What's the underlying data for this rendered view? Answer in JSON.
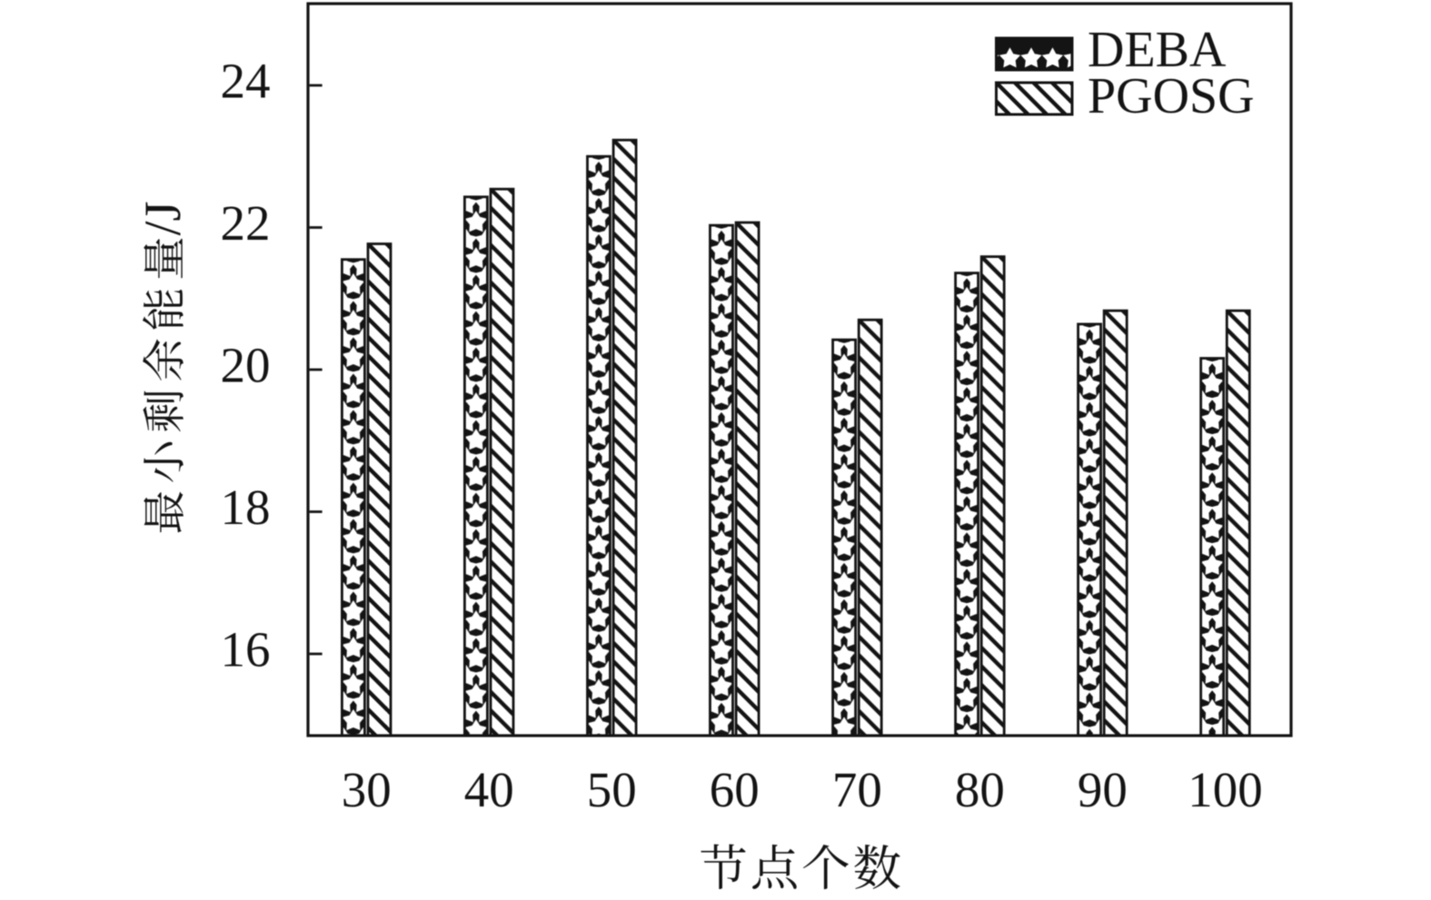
{
  "figure": {
    "background": "#ffffff",
    "ink_color": "#141414"
  },
  "chart_data": {
    "type": "bar",
    "title": "",
    "xlabel": "节点个数",
    "ylabel": "最小剩余能量/J",
    "categories": [
      "30",
      "40",
      "50",
      "60",
      "70",
      "80",
      "90",
      "100"
    ],
    "series": [
      {
        "name": "DEBA",
        "pattern": "white-stars-on-black",
        "values": [
          21.55,
          22.43,
          23.0,
          22.03,
          20.42,
          21.36,
          20.64,
          20.16
        ]
      },
      {
        "name": "PGOSG",
        "pattern": "black-diagonal-hatch",
        "values": [
          21.77,
          22.54,
          23.23,
          22.07,
          20.7,
          21.59,
          20.83,
          20.83
        ]
      }
    ],
    "ylim": [
      14.85,
      25.15
    ],
    "yticks": [
      16,
      18,
      20,
      22,
      24
    ],
    "grid": false,
    "legend_position": "top-right",
    "legend_labels": [
      "DEBA",
      "PGOSG"
    ]
  }
}
